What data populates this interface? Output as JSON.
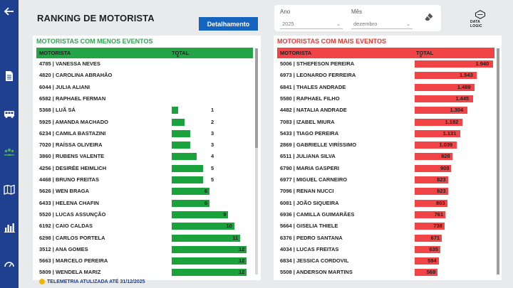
{
  "header": {
    "title": "RANKING DE MOTORISTA",
    "detail_button": "Detalhamento"
  },
  "filters": {
    "year_label": "Ano",
    "year_value": "2025",
    "month_label": "Mês",
    "month_value": "dezembro"
  },
  "logo": {
    "text": "DATA LOGIC"
  },
  "footer": {
    "text": "TELEMETRIA ATULIZADA ATÉ 31/12/2025"
  },
  "colors": {
    "sidebar": "#1f3f8f",
    "green": "#1aa33c",
    "red": "#f04446",
    "button": "#1565c0"
  },
  "sidebar": {
    "icons": [
      "back-arrow-icon",
      "document-icon",
      "bus-icon",
      "group-icon",
      "map-icon",
      "bar-chart-icon",
      "gauge-icon"
    ]
  },
  "left_panel": {
    "title": "MOTORISTAS COM MENOS EVENTOS",
    "col_name": "MOTORISTA",
    "col_total": "TOTAL",
    "rows": [
      {
        "name": "4785 | VANESSA NEVES",
        "total": ""
      },
      {
        "name": "4820 | CAROLINA ABRAHÃO",
        "total": ""
      },
      {
        "name": "6044 | JULIA ALIANI",
        "total": ""
      },
      {
        "name": "6582 | RAPHAEL FERMAN",
        "total": ""
      },
      {
        "name": "5368 | LUÃ SÁ",
        "total": "1",
        "value": 1
      },
      {
        "name": "5925 | AMANDA MACHADO",
        "total": "2",
        "value": 2
      },
      {
        "name": "6234 | CAMILA BASTAZINI",
        "total": "3",
        "value": 3
      },
      {
        "name": "7020 | RAÍSSA OLIVEIRA",
        "total": "3",
        "value": 3
      },
      {
        "name": "3860 | RUBENS VALENTE",
        "total": "4",
        "value": 4
      },
      {
        "name": "4256 | DESIRÉE HEIMLICH",
        "total": "5",
        "value": 5
      },
      {
        "name": "4468 | BRUNO FREITAS",
        "total": "5",
        "value": 5
      },
      {
        "name": "5626 | WEN BRAGA",
        "total": "6",
        "value": 6
      },
      {
        "name": "6433 | HELENA CHAFIN",
        "total": "6",
        "value": 6
      },
      {
        "name": "5520 | LUCAS ASSUNÇÃO",
        "total": "9",
        "value": 9
      },
      {
        "name": "6192 | CAIO CALDAS",
        "total": "10",
        "value": 10
      },
      {
        "name": "6298 | CARLOS PORTELA",
        "total": "11",
        "value": 11
      },
      {
        "name": "3512 | ANA GOMES",
        "total": "12",
        "value": 12
      },
      {
        "name": "5663 | MARCELO PEREIRA",
        "total": "12",
        "value": 12
      },
      {
        "name": "5809 | WENDELA MARIZ",
        "total": "12",
        "value": 12
      }
    ]
  },
  "right_panel": {
    "title": "MOTORISTAS COM MAIS EVENTOS",
    "col_name": "MOTORISTA",
    "col_total": "TOTAL",
    "rows": [
      {
        "name": "5006 | STHEFESON PEREIRA",
        "total": "1.940",
        "value": 1940
      },
      {
        "name": "6973 | LEONARDO FERREIRA",
        "total": "1.543",
        "value": 1543
      },
      {
        "name": "6841 | THALES ANDRADE",
        "total": "1.489",
        "value": 1489
      },
      {
        "name": "5580 | RAPHAEL FILHO",
        "total": "1.445",
        "value": 1445
      },
      {
        "name": "4482 | NATALIA ANDRADE",
        "total": "1.304",
        "value": 1304
      },
      {
        "name": "7083 | IZABEL MIURA",
        "total": "1.182",
        "value": 1182
      },
      {
        "name": "5433 | TIAGO PEREIRA",
        "total": "1.131",
        "value": 1131
      },
      {
        "name": "2869 | GABRIELLE VIRÍSSIMO",
        "total": "1.039",
        "value": 1039
      },
      {
        "name": "6511 | JULIANA SILVA",
        "total": "928",
        "value": 928
      },
      {
        "name": "6790 | MARIA GASPERI",
        "total": "908",
        "value": 908
      },
      {
        "name": "6977 | MIGUEL CARNEIRO",
        "total": "823",
        "value": 823
      },
      {
        "name": "7096 | RENAN NUCCI",
        "total": "823",
        "value": 823
      },
      {
        "name": "6081 | JOÃO SIQUEIRA",
        "total": "803",
        "value": 803
      },
      {
        "name": "6936 | CAMILLA GUIMARÃES",
        "total": "761",
        "value": 761
      },
      {
        "name": "5664 | GISELIA THIELE",
        "total": "738",
        "value": 738
      },
      {
        "name": "6376 | PEDRO SANTANA",
        "total": "671",
        "value": 671
      },
      {
        "name": "4034 | LUCAS FREITAS",
        "total": "635",
        "value": 635
      },
      {
        "name": "6834 | JESSICA CORDOVIL",
        "total": "594",
        "value": 594
      },
      {
        "name": "5508 | ANDERSON MARTINS",
        "total": "569",
        "value": 569
      }
    ]
  }
}
